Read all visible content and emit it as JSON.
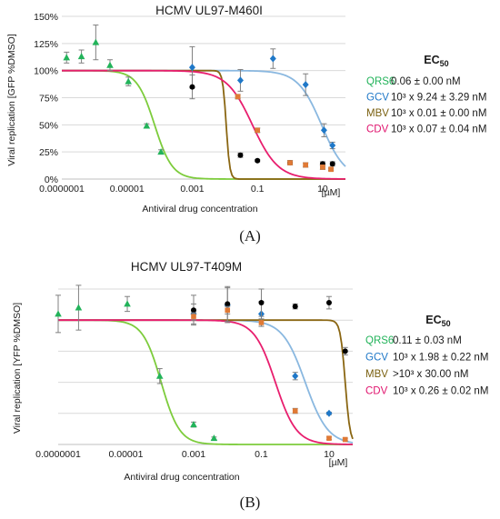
{
  "chart_data": [
    {
      "type": "scatter",
      "title": "HCMV UL97-M460I",
      "panel_label": "(A)",
      "xlabel": "Antiviral drug concentration",
      "ylabel": "Viral replication [GFP %DMSO]",
      "x_scale": "log",
      "x_unit_label": "[µM]",
      "xlim": [
        1e-07,
        50
      ],
      "ylim": [
        0,
        150
      ],
      "x_ticks": [
        {
          "v": 1e-07,
          "label": "0.0000001"
        },
        {
          "v": 1e-05,
          "label": "0.00001"
        },
        {
          "v": 0.001,
          "label": "0.001"
        },
        {
          "v": 0.1,
          "label": "0.1"
        },
        {
          "v": 10,
          "label": "10"
        }
      ],
      "y_ticks": [
        {
          "v": 0,
          "label": "0%"
        },
        {
          "v": 25,
          "label": "25%"
        },
        {
          "v": 50,
          "label": "50%"
        },
        {
          "v": 75,
          "label": "75%"
        },
        {
          "v": 100,
          "label": "100%"
        },
        {
          "v": 125,
          "label": "125%"
        },
        {
          "v": 150,
          "label": "150%"
        }
      ],
      "grid": "horizontal",
      "legend_header": "EC50",
      "legend_header_main": "EC",
      "legend_header_sub": "50",
      "series": [
        {
          "name": "QRS6",
          "color": "#22b35a",
          "curve_color": "#7dcc3c",
          "marker": "triangle",
          "ec50": "0.06 ± 0.00 nM",
          "hill": 1.6,
          "ec50_um": 7e-05,
          "top": 100,
          "bottom": 0,
          "points": [
            [
              1.4e-07,
              112,
              5
            ],
            [
              4e-07,
              113,
              6
            ],
            [
              1.1e-06,
              126,
              16
            ],
            [
              3e-06,
              105,
              5
            ],
            [
              1.1e-05,
              90,
              4
            ],
            [
              4e-05,
              49,
              2
            ],
            [
              0.00011,
              25,
              2
            ]
          ]
        },
        {
          "name": "GCV",
          "color": "#1f78c8",
          "curve_color": "#8ab8e0",
          "marker": "diamond",
          "ec50": "10³ x 9.24 ± 3.29 nM",
          "hill": 1.2,
          "ec50_um": 9.24,
          "top": 100,
          "bottom": 0,
          "points": [
            [
              0.001,
              103,
              19
            ],
            [
              0.03,
              91,
              10
            ],
            [
              0.3,
              111,
              9
            ],
            [
              3,
              87,
              10
            ],
            [
              11,
              45,
              6
            ],
            [
              20,
              31,
              3
            ]
          ]
        },
        {
          "name": "MBV",
          "color": "#7a6010",
          "curve_color": "#8a6612",
          "marker": "square",
          "ec50": "10³ x 0.01 ± 0.00 nM",
          "hill": 8,
          "ec50_um": 0.011,
          "top": 100,
          "bottom": 0,
          "points": [
            [
              0.025,
              76,
              2
            ],
            [
              0.1,
              45,
              2
            ],
            [
              1,
              15,
              2
            ],
            [
              3,
              13,
              2
            ],
            [
              10,
              11,
              2
            ],
            [
              18,
              9,
              1
            ]
          ]
        },
        {
          "name": "CDV",
          "color": "#e0146e",
          "curve_color": "#e81e6e",
          "marker": "square",
          "ec50": "10³ x 0.07 ± 0.04 nM",
          "hill": 1.1,
          "ec50_um": 0.07,
          "top": 100,
          "bottom": 0,
          "points": []
        },
        {
          "name": "",
          "color": "#000000",
          "marker": "circle",
          "points": [
            [
              0.001,
              85,
              11
            ],
            [
              0.03,
              22,
              2
            ],
            [
              0.1,
              17,
              1
            ],
            [
              1,
              15,
              2
            ],
            [
              10,
              14,
              2
            ],
            [
              20,
              14,
              2
            ]
          ]
        },
        {
          "name": "",
          "color": "#e07a36",
          "marker": "square",
          "points": [
            [
              0.025,
              76,
              2
            ],
            [
              0.1,
              45,
              2
            ],
            [
              1,
              15,
              2
            ],
            [
              3,
              13,
              2
            ],
            [
              10,
              11,
              2
            ],
            [
              18,
              9,
              1
            ]
          ]
        }
      ]
    },
    {
      "type": "scatter",
      "title": "HCMV UL97-T409M",
      "panel_label": "(B)",
      "xlabel": "Antiviral drug concentration",
      "ylabel": "Viral replication [YFP %DMSO]",
      "x_scale": "log",
      "x_unit_label": "[µM]",
      "xlim": [
        1e-07,
        50
      ],
      "ylim": [
        0,
        125
      ],
      "x_ticks": [
        {
          "v": 1e-07,
          "label": "0.0000001"
        },
        {
          "v": 1e-05,
          "label": "0.00001"
        },
        {
          "v": 0.001,
          "label": "0.001"
        },
        {
          "v": 0.1,
          "label": "0.1"
        },
        {
          "v": 10,
          "label": "10"
        }
      ],
      "y_ticks": [],
      "grid": "horizontal",
      "legend_header": "EC50",
      "legend_header_main": "EC",
      "legend_header_sub": "50",
      "series": [
        {
          "name": "QRS6",
          "color": "#22b35a",
          "curve_color": "#7dcc3c",
          "marker": "triangle",
          "ec50": "0.11 ± 0.03 nM",
          "ec50_um": 0.00011,
          "hill": 1.6,
          "top": 100,
          "bottom": 0,
          "points": [
            [
              1e-07,
              105,
              15
            ],
            [
              4e-07,
              110,
              18
            ],
            [
              1.1e-05,
              113,
              6
            ],
            [
              0.0001,
              55,
              6
            ],
            [
              0.001,
              16,
              2
            ],
            [
              0.004,
              5,
              1
            ]
          ]
        },
        {
          "name": "GCV",
          "color": "#1f78c8",
          "curve_color": "#8ab8e0",
          "marker": "diamond",
          "ec50": "10³ x 1.98 ± 0.22 nM",
          "ec50_um": 1.98,
          "hill": 1.3,
          "top": 100,
          "bottom": 0,
          "points": [
            [
              0.001,
              105,
              8
            ],
            [
              0.01,
              112,
              14
            ],
            [
              0.1,
              105,
              10
            ],
            [
              1,
              55,
              3
            ],
            [
              10,
              25,
              1
            ]
          ]
        },
        {
          "name": "MBV",
          "color": "#7a6010",
          "curve_color": "#8a6612",
          "marker": "square",
          "ec50": ">10³ x 30.00",
          "ec50_unit": "nM",
          "ec50_um": 30,
          "hill": 6,
          "top": 100,
          "bottom": 0,
          "points": []
        },
        {
          "name": "CDV",
          "color": "#e0146e",
          "curve_color": "#e81e6e",
          "marker": "square",
          "ec50": "10³ x 0.26 ± 0.02 nM",
          "ec50_um": 0.26,
          "hill": 1.4,
          "top": 100,
          "bottom": 0,
          "points": []
        },
        {
          "name": "",
          "color": "#000000",
          "marker": "circle",
          "points": [
            [
              0.001,
              108,
              12
            ],
            [
              0.01,
              113,
              14
            ],
            [
              0.1,
              114,
              11
            ],
            [
              1,
              111,
              2
            ],
            [
              10,
              114,
              5
            ],
            [
              30,
              75,
              3
            ]
          ]
        },
        {
          "name": "",
          "color": "#e07a36",
          "marker": "square",
          "points": [
            [
              0.001,
              103,
              3
            ],
            [
              0.01,
              108,
              3
            ],
            [
              0.1,
              98,
              3
            ],
            [
              1,
              27,
              2
            ],
            [
              10,
              5,
              1
            ],
            [
              30,
              4,
              1
            ]
          ]
        }
      ]
    }
  ]
}
